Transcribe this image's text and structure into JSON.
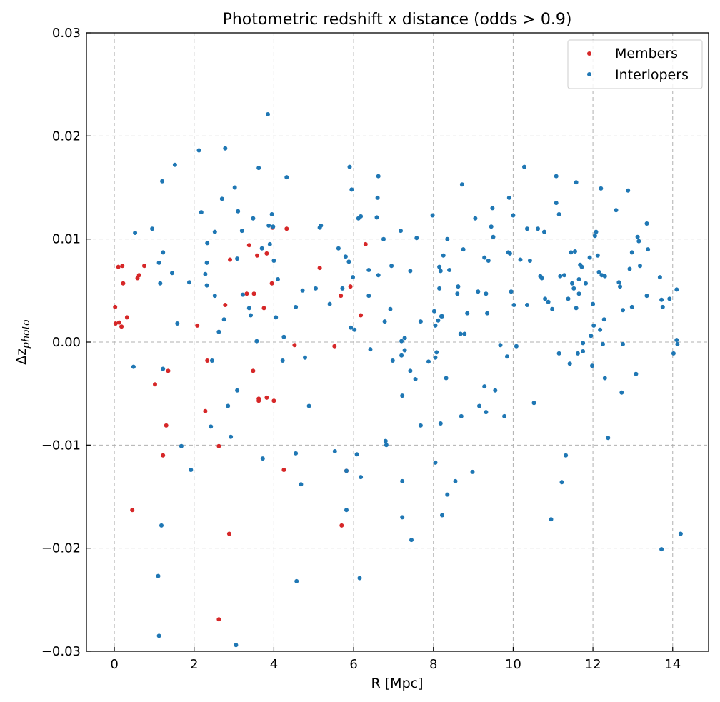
{
  "chart_data": {
    "type": "scatter",
    "title": "Photometric redshift x distance (odds > 0.9)",
    "xlabel": "R [Mpc]",
    "ylabel": "Δz_photo",
    "xlim": [
      -0.7,
      14.9
    ],
    "ylim": [
      -0.03,
      0.03
    ],
    "xticks": [
      0,
      2,
      4,
      6,
      8,
      10,
      12,
      14
    ],
    "yticks": [
      -0.03,
      -0.02,
      -0.01,
      0.0,
      0.01,
      0.02,
      0.03
    ],
    "ytick_labels": [
      "−0.03",
      "−0.02",
      "−0.01",
      "0.00",
      "0.01",
      "0.02",
      "0.03"
    ],
    "grid": true,
    "legend_position": "top-right",
    "series": [
      {
        "name": "Members",
        "color": "#d62728",
        "points": [
          [
            0.02,
            0.0034
          ],
          [
            0.03,
            0.0018
          ],
          [
            0.1,
            0.0073
          ],
          [
            0.12,
            0.0019
          ],
          [
            0.18,
            0.0015
          ],
          [
            0.2,
            0.0074
          ],
          [
            0.22,
            0.0057
          ],
          [
            0.32,
            0.0024
          ],
          [
            0.45,
            -0.0163
          ],
          [
            0.58,
            0.0062
          ],
          [
            0.62,
            0.0065
          ],
          [
            0.75,
            0.0074
          ],
          [
            1.02,
            -0.0041
          ],
          [
            1.22,
            -0.011
          ],
          [
            1.3,
            -0.0081
          ],
          [
            1.35,
            -0.0028
          ],
          [
            2.08,
            0.0016
          ],
          [
            2.28,
            -0.0067
          ],
          [
            2.33,
            -0.0018
          ],
          [
            2.62,
            -0.0101
          ],
          [
            2.62,
            -0.0269
          ],
          [
            2.78,
            0.0036
          ],
          [
            2.88,
            -0.0186
          ],
          [
            2.9,
            0.008
          ],
          [
            3.32,
            0.0047
          ],
          [
            3.38,
            0.0094
          ],
          [
            3.48,
            -0.0028
          ],
          [
            3.5,
            0.0047
          ],
          [
            3.58,
            0.0084
          ],
          [
            3.62,
            -0.0057
          ],
          [
            3.62,
            -0.0055
          ],
          [
            3.75,
            0.0033
          ],
          [
            3.82,
            0.0086
          ],
          [
            3.82,
            -0.0054
          ],
          [
            3.95,
            0.0057
          ],
          [
            3.97,
            0.0111
          ],
          [
            4.0,
            -0.0057
          ],
          [
            4.25,
            -0.0124
          ],
          [
            4.32,
            0.011
          ],
          [
            4.52,
            -0.0003
          ],
          [
            5.15,
            0.0072
          ],
          [
            5.52,
            -0.0004
          ],
          [
            5.68,
            0.0045
          ],
          [
            5.7,
            -0.0178
          ],
          [
            5.82,
            -0.0125
          ],
          [
            5.92,
            0.0054
          ],
          [
            6.18,
            0.0026
          ],
          [
            6.3,
            0.0095
          ]
        ]
      },
      {
        "name": "Interlopers",
        "color": "#1f77b4",
        "points": [
          [
            0.48,
            -0.0024
          ],
          [
            0.52,
            0.0106
          ],
          [
            0.95,
            0.011
          ],
          [
            1.1,
            -0.0227
          ],
          [
            1.12,
            -0.0285
          ],
          [
            1.15,
            0.0057
          ],
          [
            1.18,
            -0.0178
          ],
          [
            1.2,
            0.0156
          ],
          [
            1.22,
            0.0087
          ],
          [
            1.22,
            -0.0026
          ],
          [
            1.12,
            0.0077
          ],
          [
            1.45,
            0.0067
          ],
          [
            1.52,
            0.0172
          ],
          [
            1.58,
            0.0018
          ],
          [
            1.68,
            -0.0101
          ],
          [
            1.88,
            0.0058
          ],
          [
            1.92,
            -0.0124
          ],
          [
            2.12,
            0.0186
          ],
          [
            2.18,
            0.0126
          ],
          [
            2.28,
            0.0066
          ],
          [
            2.32,
            0.0055
          ],
          [
            2.32,
            0.0077
          ],
          [
            2.33,
            0.0096
          ],
          [
            2.42,
            -0.0082
          ],
          [
            2.45,
            -0.0018
          ],
          [
            2.52,
            0.0045
          ],
          [
            2.52,
            0.0107
          ],
          [
            2.62,
            0.001
          ],
          [
            2.7,
            0.0139
          ],
          [
            2.75,
            0.0022
          ],
          [
            2.78,
            0.0188
          ],
          [
            2.85,
            -0.0062
          ],
          [
            2.92,
            -0.0092
          ],
          [
            3.02,
            0.015
          ],
          [
            3.05,
            -0.0294
          ],
          [
            3.08,
            0.0081
          ],
          [
            3.08,
            -0.0047
          ],
          [
            3.1,
            0.0127
          ],
          [
            3.2,
            0.0108
          ],
          [
            3.22,
            0.0046
          ],
          [
            3.38,
            0.0033
          ],
          [
            3.42,
            0.0026
          ],
          [
            3.48,
            0.012
          ],
          [
            3.57,
            0.0001
          ],
          [
            3.62,
            0.0169
          ],
          [
            3.7,
            0.0091
          ],
          [
            3.72,
            -0.0113
          ],
          [
            3.85,
            0.0221
          ],
          [
            3.87,
            0.0113
          ],
          [
            3.9,
            0.0095
          ],
          [
            3.95,
            0.0124
          ],
          [
            3.98,
            0.0112
          ],
          [
            4.0,
            0.0079
          ],
          [
            4.05,
            0.0024
          ],
          [
            4.1,
            0.0061
          ],
          [
            4.22,
            -0.0018
          ],
          [
            4.25,
            0.0005
          ],
          [
            4.32,
            0.016
          ],
          [
            4.55,
            0.0034
          ],
          [
            4.55,
            -0.0108
          ],
          [
            4.57,
            -0.0232
          ],
          [
            4.68,
            -0.0138
          ],
          [
            4.72,
            0.005
          ],
          [
            4.78,
            -0.0015
          ],
          [
            4.88,
            -0.0062
          ],
          [
            5.05,
            0.0052
          ],
          [
            5.15,
            0.0111
          ],
          [
            5.18,
            0.0113
          ],
          [
            5.4,
            0.0037
          ],
          [
            5.53,
            -0.0106
          ],
          [
            5.62,
            0.0091
          ],
          [
            5.72,
            0.0052
          ],
          [
            5.8,
            0.0083
          ],
          [
            5.82,
            -0.0125
          ],
          [
            5.82,
            -0.0163
          ],
          [
            5.88,
            0.0078
          ],
          [
            5.9,
            0.017
          ],
          [
            5.93,
            0.0014
          ],
          [
            5.95,
            0.0148
          ],
          [
            5.98,
            0.0063
          ],
          [
            6.02,
            0.0012
          ],
          [
            6.08,
            -0.0109
          ],
          [
            6.12,
            0.012
          ],
          [
            6.15,
            -0.0229
          ],
          [
            6.18,
            0.0122
          ],
          [
            6.18,
            -0.0131
          ],
          [
            6.38,
            0.0045
          ],
          [
            6.38,
            0.007
          ],
          [
            6.42,
            -0.0007
          ],
          [
            6.58,
            0.0121
          ],
          [
            6.6,
            0.014
          ],
          [
            6.62,
            0.0161
          ],
          [
            6.62,
            0.0065
          ],
          [
            6.75,
            0.01
          ],
          [
            6.78,
            0.002
          ],
          [
            6.8,
            -0.0096
          ],
          [
            6.82,
            -0.01
          ],
          [
            6.92,
            0.0032
          ],
          [
            6.95,
            0.0074
          ],
          [
            6.98,
            -0.0018
          ],
          [
            7.18,
            0.0108
          ],
          [
            7.2,
            0.0001
          ],
          [
            7.2,
            -0.0013
          ],
          [
            7.22,
            -0.0052
          ],
          [
            7.22,
            -0.0135
          ],
          [
            7.22,
            -0.017
          ],
          [
            7.28,
            -0.0008
          ],
          [
            7.28,
            0.0004
          ],
          [
            7.42,
            0.0069
          ],
          [
            7.42,
            -0.0028
          ],
          [
            7.45,
            -0.0192
          ],
          [
            7.55,
            -0.0036
          ],
          [
            7.58,
            0.0101
          ],
          [
            7.68,
            -0.0081
          ],
          [
            7.68,
            0.002
          ],
          [
            7.88,
            -0.0019
          ],
          [
            7.98,
            0.0123
          ],
          [
            8.02,
            0.003
          ],
          [
            8.05,
            -0.0117
          ],
          [
            8.05,
            0.0016
          ],
          [
            8.05,
            -0.0015
          ],
          [
            8.08,
            -0.001
          ],
          [
            8.12,
            0.0021
          ],
          [
            8.15,
            0.0052
          ],
          [
            8.15,
            0.0073
          ],
          [
            8.18,
            0.0069
          ],
          [
            8.18,
            -0.0079
          ],
          [
            8.2,
            0.0025
          ],
          [
            8.22,
            0.0025
          ],
          [
            8.22,
            -0.0168
          ],
          [
            8.25,
            0.0084
          ],
          [
            8.32,
            -0.0035
          ],
          [
            8.35,
            0.01
          ],
          [
            8.35,
            -0.0148
          ],
          [
            8.4,
            0.007
          ],
          [
            8.55,
            -0.0135
          ],
          [
            8.6,
            0.0047
          ],
          [
            8.62,
            0.0054
          ],
          [
            8.68,
            0.0008
          ],
          [
            8.7,
            -0.0072
          ],
          [
            8.72,
            0.0153
          ],
          [
            8.75,
            0.009
          ],
          [
            8.78,
            0.0008
          ],
          [
            8.85,
            0.0028
          ],
          [
            8.98,
            -0.0126
          ],
          [
            9.05,
            0.012
          ],
          [
            9.12,
            0.0049
          ],
          [
            9.15,
            -0.0062
          ],
          [
            9.28,
            0.0082
          ],
          [
            9.28,
            -0.0043
          ],
          [
            9.32,
            0.0047
          ],
          [
            9.32,
            -0.0068
          ],
          [
            9.35,
            0.0028
          ],
          [
            9.38,
            0.0079
          ],
          [
            9.45,
            0.0112
          ],
          [
            9.48,
            0.013
          ],
          [
            9.5,
            0.0102
          ],
          [
            9.55,
            -0.0047
          ],
          [
            9.68,
            -0.0003
          ],
          [
            9.78,
            -0.0072
          ],
          [
            9.85,
            -0.0014
          ],
          [
            9.88,
            0.0087
          ],
          [
            9.9,
            0.014
          ],
          [
            9.92,
            0.0086
          ],
          [
            9.95,
            0.0049
          ],
          [
            10.0,
            0.0123
          ],
          [
            10.02,
            0.0036
          ],
          [
            10.08,
            -0.0004
          ],
          [
            10.18,
            0.008
          ],
          [
            10.28,
            0.017
          ],
          [
            10.35,
            0.011
          ],
          [
            10.35,
            0.0036
          ],
          [
            10.42,
            0.0079
          ],
          [
            10.52,
            -0.0059
          ],
          [
            10.62,
            0.011
          ],
          [
            10.68,
            0.0064
          ],
          [
            10.72,
            0.0062
          ],
          [
            10.78,
            0.0107
          ],
          [
            10.8,
            0.0042
          ],
          [
            10.88,
            0.0039
          ],
          [
            10.95,
            -0.0172
          ],
          [
            10.98,
            0.0032
          ],
          [
            11.08,
            0.0161
          ],
          [
            11.08,
            0.0135
          ],
          [
            11.15,
            0.0124
          ],
          [
            11.15,
            -0.0011
          ],
          [
            11.18,
            0.0064
          ],
          [
            11.22,
            -0.0136
          ],
          [
            11.28,
            0.0065
          ],
          [
            11.32,
            -0.011
          ],
          [
            11.38,
            0.0042
          ],
          [
            11.42,
            -0.0021
          ],
          [
            11.45,
            0.0087
          ],
          [
            11.48,
            0.0057
          ],
          [
            11.52,
            0.0052
          ],
          [
            11.55,
            0.0088
          ],
          [
            11.58,
            0.0155
          ],
          [
            11.58,
            0.0033
          ],
          [
            11.62,
            -0.0011
          ],
          [
            11.65,
            0.0061
          ],
          [
            11.65,
            0.0047
          ],
          [
            11.68,
            0.0075
          ],
          [
            11.72,
            0.0073
          ],
          [
            11.75,
            -0.0001
          ],
          [
            11.75,
            -0.0009
          ],
          [
            11.82,
            0.0057
          ],
          [
            11.92,
            0.0082
          ],
          [
            11.95,
            0.0006
          ],
          [
            11.98,
            -0.0023
          ],
          [
            12.0,
            0.0037
          ],
          [
            12.02,
            0.0016
          ],
          [
            12.05,
            0.0103
          ],
          [
            12.08,
            0.0107
          ],
          [
            12.12,
            0.0084
          ],
          [
            12.15,
            0.0068
          ],
          [
            12.18,
            0.0012
          ],
          [
            12.2,
            0.0149
          ],
          [
            12.22,
            0.0065
          ],
          [
            12.25,
            -0.0002
          ],
          [
            12.28,
            0.0022
          ],
          [
            12.3,
            0.0064
          ],
          [
            12.3,
            -0.0035
          ],
          [
            12.38,
            -0.0093
          ],
          [
            12.58,
            0.0128
          ],
          [
            12.65,
            0.0058
          ],
          [
            12.68,
            0.0054
          ],
          [
            12.72,
            -0.0049
          ],
          [
            12.75,
            0.0031
          ],
          [
            12.75,
            -0.0002
          ],
          [
            12.88,
            0.0147
          ],
          [
            12.92,
            0.0071
          ],
          [
            12.98,
            0.0087
          ],
          [
            12.98,
            0.0034
          ],
          [
            13.08,
            -0.0031
          ],
          [
            13.12,
            0.0102
          ],
          [
            13.15,
            0.0098
          ],
          [
            13.18,
            0.0074
          ],
          [
            13.35,
            0.0045
          ],
          [
            13.35,
            0.0115
          ],
          [
            13.38,
            0.009
          ],
          [
            13.68,
            0.0063
          ],
          [
            13.72,
            0.0041
          ],
          [
            13.72,
            -0.0201
          ],
          [
            13.75,
            0.0034
          ],
          [
            13.92,
            0.0042
          ],
          [
            14.02,
            -0.0011
          ],
          [
            14.1,
            0.0051
          ],
          [
            14.1,
            0.0002
          ],
          [
            14.12,
            -0.0002
          ],
          [
            14.2,
            -0.0186
          ]
        ]
      }
    ]
  }
}
